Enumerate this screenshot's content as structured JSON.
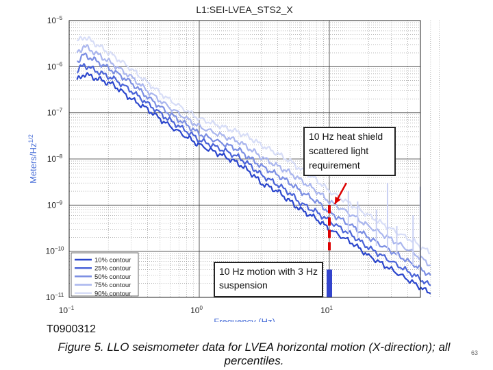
{
  "chart_data": {
    "type": "line",
    "title": "L1:SEI-LVEA_STS2_X",
    "xlabel": "Frequency (Hz)",
    "ylabel": "Meters/Hz",
    "ylabel_sup": "1/2",
    "xscale": "log",
    "yscale": "log",
    "xlim": [
      0.1,
      70
    ],
    "ylim": [
      1e-11,
      1e-05
    ],
    "grid": true,
    "x_ticks": [
      {
        "value": 0.1,
        "base": "10",
        "exp": "−1"
      },
      {
        "value": 1,
        "base": "10",
        "exp": "0"
      },
      {
        "value": 10,
        "base": "10",
        "exp": "1"
      }
    ],
    "y_ticks": [
      {
        "value": 1e-05,
        "base": "10",
        "exp": "−5"
      },
      {
        "value": 1e-06,
        "base": "10",
        "exp": "−6"
      },
      {
        "value": 1e-07,
        "base": "10",
        "exp": "−7"
      },
      {
        "value": 1e-08,
        "base": "10",
        "exp": "−8"
      },
      {
        "value": 1e-09,
        "base": "10",
        "exp": "−9"
      },
      {
        "value": 1e-10,
        "base": "10",
        "exp": "−10"
      },
      {
        "value": 1e-11,
        "base": "10",
        "exp": "−11"
      }
    ],
    "legend_position": "bottom-left",
    "series": [
      {
        "name": "10% contour",
        "color": "#2a45cc",
        "points": [
          [
            0.115,
            5e-07
          ],
          [
            0.13,
            7e-07
          ],
          [
            0.15,
            6e-07
          ],
          [
            0.18,
            5e-07
          ],
          [
            0.22,
            4e-07
          ],
          [
            0.3,
            2e-07
          ],
          [
            0.4,
            1.2e-07
          ],
          [
            0.55,
            6e-08
          ],
          [
            0.8,
            3e-08
          ],
          [
            1,
            2e-08
          ],
          [
            1.5,
            1.2e-08
          ],
          [
            2,
            8e-09
          ],
          [
            2.5,
            5e-09
          ],
          [
            3,
            3e-09
          ],
          [
            4,
            2e-09
          ],
          [
            5,
            1.2e-09
          ],
          [
            6,
            8e-10
          ],
          [
            8,
            5e-10
          ],
          [
            10,
            3e-10
          ],
          [
            15,
            1.5e-10
          ],
          [
            20,
            8e-11
          ],
          [
            30,
            4e-11
          ],
          [
            45,
            2e-11
          ],
          [
            60,
            1.2e-11
          ]
        ]
      },
      {
        "name": "25% contour",
        "color": "#4a63d8",
        "points": [
          [
            0.115,
            8e-07
          ],
          [
            0.13,
            1.1e-06
          ],
          [
            0.15,
            9e-07
          ],
          [
            0.18,
            7e-07
          ],
          [
            0.22,
            5.5e-07
          ],
          [
            0.3,
            3e-07
          ],
          [
            0.4,
            1.6e-07
          ],
          [
            0.55,
            8e-08
          ],
          [
            0.8,
            4e-08
          ],
          [
            1,
            2.6e-08
          ],
          [
            1.5,
            1.6e-08
          ],
          [
            2,
            1.1e-08
          ],
          [
            2.5,
            7e-09
          ],
          [
            3,
            4.5e-09
          ],
          [
            4,
            2.8e-09
          ],
          [
            5,
            1.8e-09
          ],
          [
            6,
            1.1e-09
          ],
          [
            8,
            7e-10
          ],
          [
            10,
            4.5e-10
          ],
          [
            15,
            2.2e-10
          ],
          [
            20,
            1.2e-10
          ],
          [
            30,
            6e-11
          ],
          [
            45,
            3e-11
          ],
          [
            60,
            1.8e-11
          ]
        ]
      },
      {
        "name": "50% contour",
        "color": "#7b8ee3",
        "points": [
          [
            0.115,
            1.3e-06
          ],
          [
            0.13,
            1.8e-06
          ],
          [
            0.15,
            1.5e-06
          ],
          [
            0.18,
            1.1e-06
          ],
          [
            0.22,
            8e-07
          ],
          [
            0.3,
            4.5e-07
          ],
          [
            0.4,
            2.2e-07
          ],
          [
            0.55,
            1.1e-07
          ],
          [
            0.8,
            5.5e-08
          ],
          [
            1,
            3.5e-08
          ],
          [
            1.5,
            2.2e-08
          ],
          [
            2,
            1.6e-08
          ],
          [
            2.5,
            1e-08
          ],
          [
            3,
            7e-09
          ],
          [
            4,
            4.5e-09
          ],
          [
            5,
            3e-09
          ],
          [
            6,
            2e-09
          ],
          [
            8,
            1.2e-09
          ],
          [
            10,
            7e-10
          ],
          [
            15,
            3.5e-10
          ],
          [
            20,
            2e-10
          ],
          [
            30,
            1e-10
          ],
          [
            45,
            5e-11
          ],
          [
            60,
            3e-11
          ]
        ]
      },
      {
        "name": "75% contour",
        "color": "#aab6ee",
        "points": [
          [
            0.115,
            2e-06
          ],
          [
            0.13,
            2.8e-06
          ],
          [
            0.15,
            2.2e-06
          ],
          [
            0.18,
            1.6e-06
          ],
          [
            0.22,
            1.1e-06
          ],
          [
            0.3,
            6e-07
          ],
          [
            0.4,
            3e-07
          ],
          [
            0.55,
            1.5e-07
          ],
          [
            0.8,
            7.5e-08
          ],
          [
            1,
            5e-08
          ],
          [
            1.5,
            3.2e-08
          ],
          [
            2,
            2.4e-08
          ],
          [
            2.5,
            1.6e-08
          ],
          [
            3,
            1.1e-08
          ],
          [
            4,
            7e-09
          ],
          [
            5,
            5e-09
          ],
          [
            6,
            3.5e-09
          ],
          [
            8,
            2e-09
          ],
          [
            10,
            1.2e-09
          ],
          [
            15,
            6e-10
          ],
          [
            20,
            3.5e-10
          ],
          [
            30,
            1.8e-10
          ],
          [
            45,
            9e-11
          ],
          [
            60,
            5e-11
          ]
        ]
      },
      {
        "name": "90% contour",
        "color": "#d7ddf7",
        "points": [
          [
            0.115,
            3.5e-06
          ],
          [
            0.13,
            4.5e-06
          ],
          [
            0.15,
            3.5e-06
          ],
          [
            0.18,
            2.5e-06
          ],
          [
            0.22,
            1.7e-06
          ],
          [
            0.3,
            9e-07
          ],
          [
            0.4,
            4.5e-07
          ],
          [
            0.55,
            2.2e-07
          ],
          [
            0.8,
            1.1e-07
          ],
          [
            1,
            7.5e-08
          ],
          [
            1.5,
            5e-08
          ],
          [
            2,
            3.8e-08
          ],
          [
            2.5,
            2.8e-08
          ],
          [
            3,
            2e-08
          ],
          [
            4,
            1.3e-08
          ],
          [
            5,
            9e-09
          ],
          [
            6,
            6e-09
          ],
          [
            8,
            3.5e-09
          ],
          [
            10,
            2e-09
          ],
          [
            15,
            1e-09
          ],
          [
            20,
            6e-10
          ],
          [
            30,
            3e-10
          ],
          [
            45,
            1.6e-10
          ],
          [
            60,
            9e-11
          ]
        ]
      }
    ],
    "spikes": [
      {
        "x": 14,
        "top": 2e-09,
        "base": 2.5e-10
      },
      {
        "x": 16.5,
        "top": 1.2e-09,
        "base": 2e-10
      },
      {
        "x": 23,
        "top": 8e-10,
        "base": 1.3e-10
      },
      {
        "x": 28,
        "top": 3e-09,
        "base": 1e-10
      },
      {
        "x": 33,
        "top": 3.5e-10,
        "base": 8e-11
      },
      {
        "x": 44,
        "top": 6e-10,
        "base": 5e-11
      },
      {
        "x": 50,
        "top": 2.5e-09,
        "base": 3e-11
      }
    ],
    "requirement_marker": {
      "x": 10,
      "y_top": 1e-09,
      "y_bottom": 1e-10,
      "color": "#dd0000"
    },
    "motion_bar": {
      "x": 10,
      "y_top": 4e-11,
      "y_bottom": 1e-11,
      "color": "#3344cc"
    },
    "arrow": {
      "color": "#dd0000",
      "from": [
        13.5,
        3e-09
      ],
      "to": [
        11,
        1.05e-09
      ]
    }
  },
  "annotations": {
    "heat_shield": "10 Hz heat shield scattered light requirement",
    "motion": "10 Hz motion with 3 Hz suspension"
  },
  "doc_id": "T0900312",
  "caption": "Figure 5. LLO seismometer data for LVEA horizontal motion (X-direction); all percentiles.",
  "page_number": "63"
}
